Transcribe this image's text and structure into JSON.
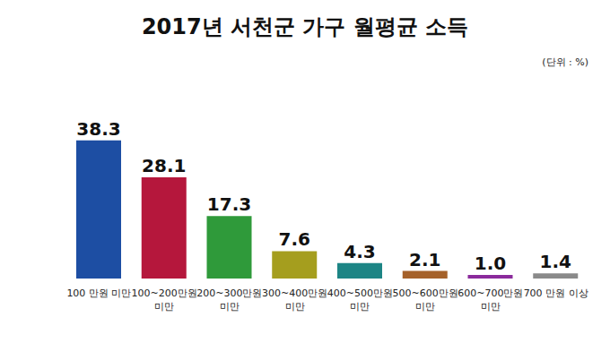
{
  "chart_data": {
    "type": "bar",
    "title": "2017년 서천군 가구 월평균 소득",
    "subtitle": "(단위 : %)",
    "categories": [
      "100 만원 미만",
      "100~200만원 미만",
      "200~300만원 미만",
      "300~400만원 미만",
      "400~500만원 미만",
      "500~600만원 미만",
      "600~700만원 미만",
      "700 만원 이상"
    ],
    "values": [
      38.3,
      28.1,
      17.3,
      7.6,
      4.3,
      2.1,
      1.0,
      1.4
    ],
    "colors": [
      "#1d4ea3",
      "#b5173c",
      "#2f9a3a",
      "#a59e1e",
      "#1d8585",
      "#a5612a",
      "#8b2b9c",
      "#8a8a8a"
    ],
    "data_labels": true,
    "tick_labels": "x",
    "grid": false
  }
}
